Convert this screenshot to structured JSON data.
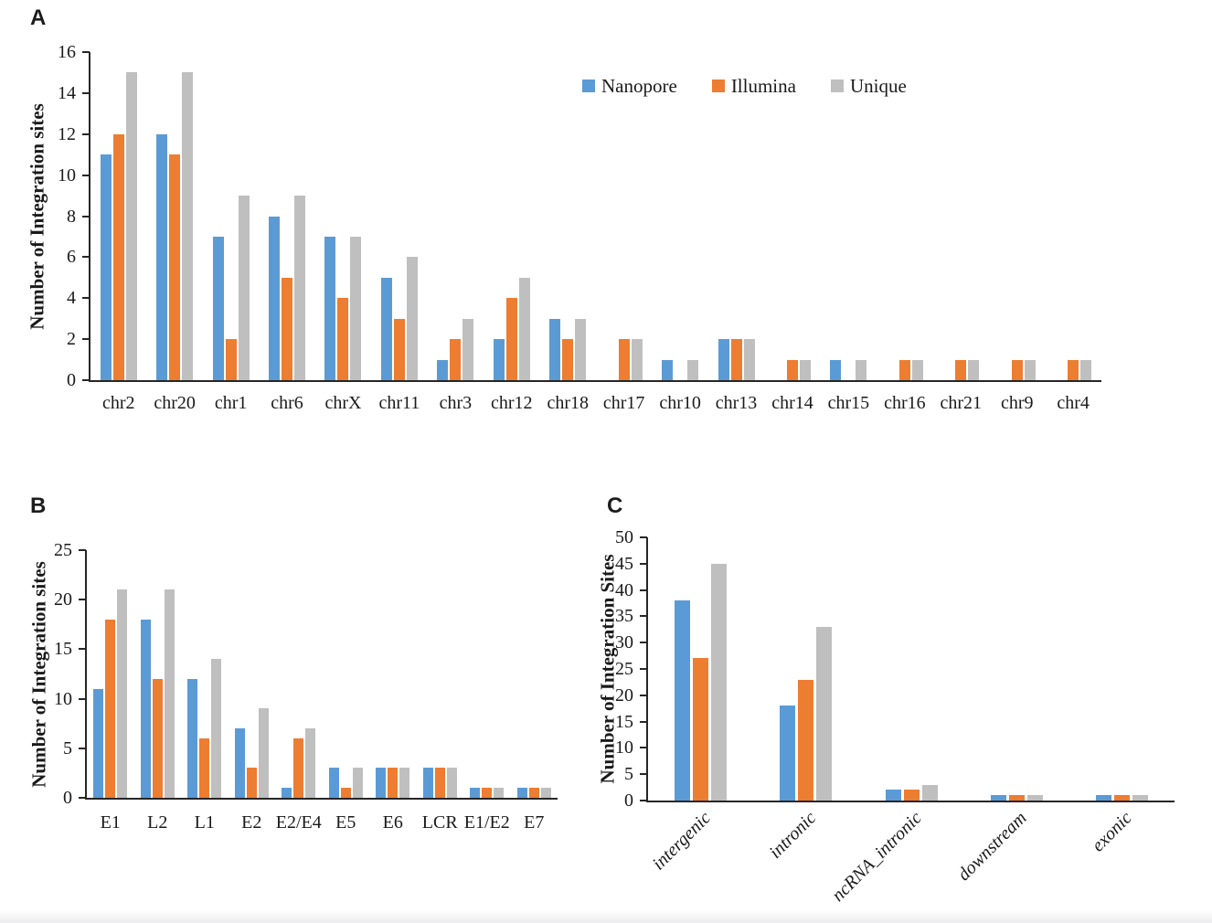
{
  "figure": {
    "panel_labels": [
      "A",
      "B",
      "C"
    ],
    "background_color": "#ffffff",
    "axis_color": "#262626",
    "series_colors": {
      "Nanopore": "#5B9BD5",
      "Illumina": "#ED7D31",
      "Unique": "#BFBFBF"
    }
  },
  "chart_data": [
    {
      "type": "bar",
      "panel_label": "A",
      "title": "",
      "xlabel": "",
      "ylabel": "Number of Integration sites",
      "ylim": [
        0,
        16
      ],
      "ytick_step": 2,
      "grid": false,
      "legend_position": "top-right-inside",
      "xtick_rotation": 0,
      "categories": [
        "chr2",
        "chr20",
        "chr1",
        "chr6",
        "chrX",
        "chr11",
        "chr3",
        "chr12",
        "chr18",
        "chr17",
        "chr10",
        "chr13",
        "chr14",
        "chr15",
        "chr16",
        "chr21",
        "chr9",
        "chr4"
      ],
      "series": [
        {
          "name": "Nanopore",
          "color": "#5B9BD5",
          "values": [
            11,
            12,
            7,
            8,
            7,
            5,
            1,
            2,
            3,
            0,
            1,
            2,
            0,
            1,
            0,
            0,
            0,
            0
          ]
        },
        {
          "name": "Illumina",
          "color": "#ED7D31",
          "values": [
            12,
            11,
            2,
            5,
            4,
            3,
            2,
            4,
            2,
            2,
            0,
            2,
            1,
            0,
            1,
            1,
            1,
            1
          ]
        },
        {
          "name": "Unique",
          "color": "#BFBFBF",
          "values": [
            15,
            15,
            9,
            9,
            7,
            6,
            3,
            5,
            3,
            2,
            1,
            2,
            1,
            1,
            1,
            1,
            1,
            1
          ]
        }
      ]
    },
    {
      "type": "bar",
      "panel_label": "B",
      "title": "",
      "xlabel": "",
      "ylabel": "Number of Integration sites",
      "ylim": [
        0,
        25
      ],
      "ytick_step": 5,
      "grid": false,
      "legend_position": "none",
      "xtick_rotation": 0,
      "categories": [
        "E1",
        "L2",
        "L1",
        "E2",
        "E2/E4",
        "E5",
        "E6",
        "LCR",
        "E1/E2",
        "E7"
      ],
      "series": [
        {
          "name": "Nanopore",
          "color": "#5B9BD5",
          "values": [
            11,
            18,
            12,
            7,
            1,
            3,
            3,
            3,
            1,
            1
          ]
        },
        {
          "name": "Illumina",
          "color": "#ED7D31",
          "values": [
            18,
            12,
            6,
            3,
            6,
            1,
            3,
            3,
            1,
            1
          ]
        },
        {
          "name": "Unique",
          "color": "#BFBFBF",
          "values": [
            21,
            21,
            14,
            9,
            7,
            3,
            3,
            3,
            1,
            1
          ]
        }
      ]
    },
    {
      "type": "bar",
      "panel_label": "C",
      "title": "",
      "xlabel": "",
      "ylabel": "Number of Integration Sites",
      "ylim": [
        0,
        50
      ],
      "ytick_step": 5,
      "grid": false,
      "legend_position": "none",
      "xtick_rotation": -45,
      "xtick_style": "italic",
      "categories": [
        "intergenic",
        "intronic",
        "ncRNA_intronic",
        "downstream",
        "exonic"
      ],
      "series": [
        {
          "name": "Nanopore",
          "color": "#5B9BD5",
          "values": [
            38,
            18,
            2,
            1,
            1
          ]
        },
        {
          "name": "Illumina",
          "color": "#ED7D31",
          "values": [
            27,
            23,
            2,
            1,
            1
          ]
        },
        {
          "name": "Unique",
          "color": "#BFBFBF",
          "values": [
            45,
            33,
            3,
            1,
            1
          ]
        }
      ]
    }
  ]
}
